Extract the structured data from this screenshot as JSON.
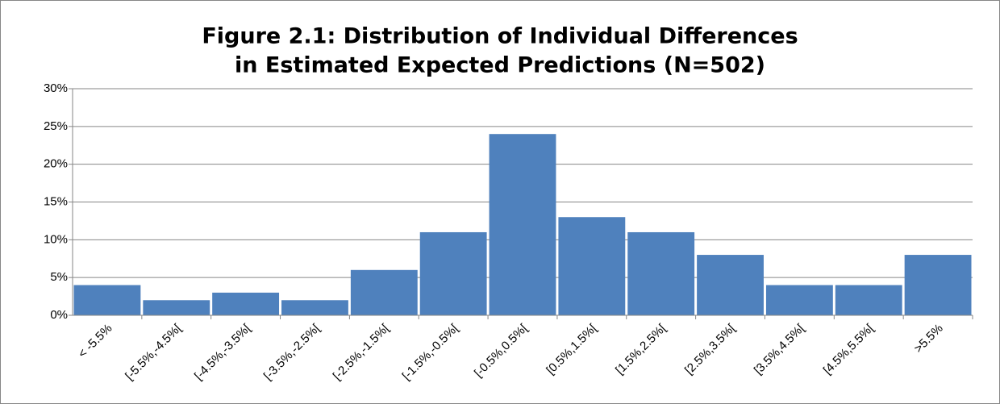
{
  "chart_data": {
    "type": "bar",
    "title": [
      "Figure 2.1: Distribution of Individual Differences",
      "in Estimated Expected Predictions (N=502)"
    ],
    "categories": [
      "< -5.5%",
      "[-5.5%,-4.5%[",
      "[-4.5%,-3.5%[",
      "[-3.5%,-2.5%[",
      "[-2.5%,-1.5%[",
      "[-1.5%,-0.5%[",
      "[-0.5%,0.5%[",
      "[0.5%,1.5%[",
      "[1.5%,2.5%[",
      "[2.5%,3.5%[",
      "[3.5%,4.5%[",
      "[4.5%,5.5%[",
      ">5.5%"
    ],
    "values": [
      4,
      2,
      3,
      2,
      6,
      11,
      24,
      13,
      11,
      8,
      4,
      4,
      8
    ],
    "color": "#4f81bd",
    "ylim": [
      0,
      30
    ],
    "yticks": [
      {
        "value": 0,
        "label": "0%"
      },
      {
        "value": 5,
        "label": "5%"
      },
      {
        "value": 10,
        "label": "10%"
      },
      {
        "value": 15,
        "label": "15%"
      },
      {
        "value": 20,
        "label": "20%"
      },
      {
        "value": 25,
        "label": "25%"
      },
      {
        "value": 30,
        "label": "30%"
      }
    ],
    "grid": true
  }
}
